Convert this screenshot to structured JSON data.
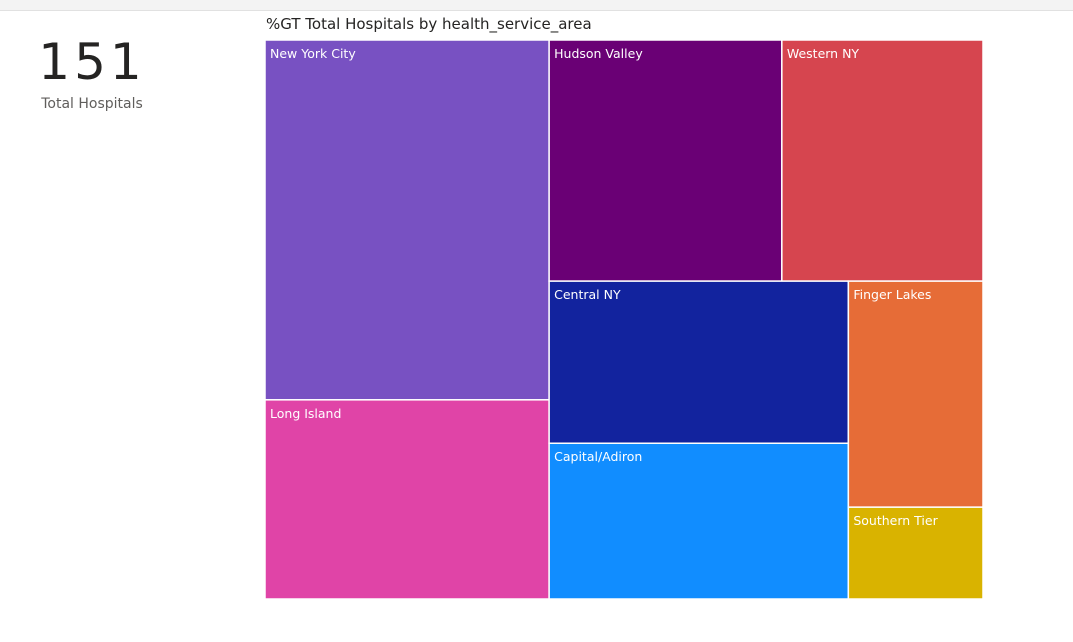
{
  "kpi": {
    "value": "151",
    "label": "Total Hospitals"
  },
  "chart_data": {
    "type": "treemap",
    "title": "%GT Total Hospitals by health_service_area",
    "measure": "%GT Total Hospitals",
    "category_field": "health_service_area",
    "nodes": [
      {
        "name": "New York City",
        "value": 21.5,
        "color": "#7851C2"
      },
      {
        "name": "Hudson Valley",
        "value": 11.8,
        "color": "#6A0075"
      },
      {
        "name": "Long Island",
        "value": 11.9,
        "color": "#E044A7"
      },
      {
        "name": "Western NY",
        "value": 10.2,
        "color": "#D6454F"
      },
      {
        "name": "Central NY",
        "value": 10.2,
        "color": "#12239E"
      },
      {
        "name": "Capital/Adiron",
        "value": 9.8,
        "color": "#118DFF"
      },
      {
        "name": "Finger Lakes",
        "value": 6.4,
        "color": "#E66C37"
      },
      {
        "name": "Southern Tier",
        "value": 2.6,
        "color": "#D9B300"
      }
    ]
  }
}
